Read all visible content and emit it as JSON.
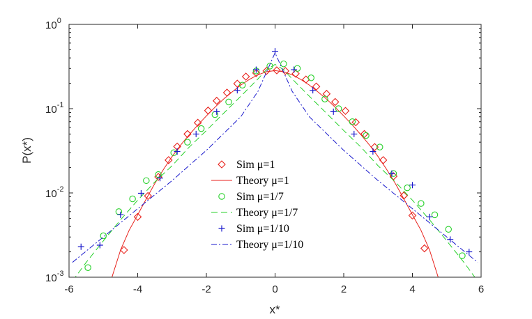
{
  "chart_data": {
    "type": "line",
    "xlabel": "x*",
    "ylabel": "P(x*)",
    "xlim": [
      -6,
      6
    ],
    "ylim": [
      0.001,
      1
    ],
    "yscale": "log",
    "grid": false,
    "legend_position": "center-left",
    "x_ticks": [
      -6,
      -4,
      -2,
      0,
      2,
      4,
      6
    ],
    "x_tick_labels": [
      "-6",
      "-4",
      "-2",
      "0",
      "2",
      "4",
      "6"
    ],
    "y_ticks": [
      {
        "value": 0.001,
        "base": "10",
        "exp": "-3"
      },
      {
        "value": 0.01,
        "base": "10",
        "exp": "-2"
      },
      {
        "value": 0.1,
        "base": "10",
        "exp": "-1"
      },
      {
        "value": 1,
        "base": "10",
        "exp": "0"
      }
    ],
    "series": [
      {
        "name": "Sim μ=1",
        "kind": "markers",
        "marker": "diamond",
        "color": "#e8221c",
        "x": [
          -4.4,
          -4.0,
          -3.7,
          -3.4,
          -3.1,
          -2.85,
          -2.55,
          -2.25,
          -1.95,
          -1.7,
          -1.4,
          -1.1,
          -0.85,
          -0.55,
          -0.25,
          0.05,
          0.3,
          0.6,
          0.9,
          1.2,
          1.5,
          1.75,
          2.05,
          2.35,
          2.6,
          2.9,
          3.15,
          3.45,
          3.75,
          4.0,
          4.35
        ],
        "y": [
          0.0021,
          0.0052,
          0.0092,
          0.0155,
          0.0245,
          0.0355,
          0.05,
          0.068,
          0.095,
          0.124,
          0.155,
          0.198,
          0.24,
          0.265,
          0.28,
          0.285,
          0.28,
          0.26,
          0.222,
          0.183,
          0.15,
          0.12,
          0.094,
          0.069,
          0.05,
          0.035,
          0.0245,
          0.0158,
          0.0093,
          0.0054,
          0.0022
        ]
      },
      {
        "name": "Theory μ=1",
        "kind": "line",
        "dash": "solid",
        "color": "#e8221c",
        "x": [
          -4.75,
          -4.5,
          -4.25,
          -4.0,
          -3.75,
          -3.5,
          -3.25,
          -3.0,
          -2.75,
          -2.5,
          -2.25,
          -2.0,
          -1.75,
          -1.5,
          -1.25,
          -1.0,
          -0.75,
          -0.5,
          -0.25,
          0.0,
          0.25,
          0.5,
          0.75,
          1.0,
          1.25,
          1.5,
          1.75,
          2.0,
          2.25,
          2.5,
          2.75,
          3.0,
          3.25,
          3.5,
          3.75,
          4.0,
          4.25,
          4.5,
          4.75
        ],
        "y": [
          0.001,
          0.0021,
          0.0036,
          0.0055,
          0.0085,
          0.013,
          0.019,
          0.027,
          0.037,
          0.049,
          0.064,
          0.082,
          0.104,
          0.13,
          0.158,
          0.19,
          0.222,
          0.252,
          0.274,
          0.283,
          0.274,
          0.252,
          0.222,
          0.19,
          0.158,
          0.13,
          0.104,
          0.082,
          0.064,
          0.049,
          0.037,
          0.027,
          0.019,
          0.013,
          0.0085,
          0.0055,
          0.0036,
          0.0021,
          0.001
        ]
      },
      {
        "name": "Sim μ=1/7",
        "kind": "markers",
        "marker": "circle",
        "color": "#27d12a",
        "x": [
          -5.45,
          -5.0,
          -4.55,
          -4.15,
          -3.75,
          -3.4,
          -2.95,
          -2.55,
          -2.15,
          -1.75,
          -1.35,
          -0.95,
          -0.55,
          -0.15,
          0.25,
          0.65,
          1.05,
          1.45,
          1.85,
          2.25,
          2.65,
          3.05,
          3.45,
          3.85,
          4.25,
          4.65,
          5.05,
          5.45
        ],
        "y": [
          0.0013,
          0.0031,
          0.006,
          0.0085,
          0.014,
          0.0165,
          0.03,
          0.04,
          0.058,
          0.085,
          0.12,
          0.19,
          0.28,
          0.32,
          0.34,
          0.3,
          0.232,
          0.13,
          0.1,
          0.07,
          0.048,
          0.035,
          0.017,
          0.0115,
          0.0075,
          0.0055,
          0.0037,
          0.0018
        ]
      },
      {
        "name": "Theory μ=1/7",
        "kind": "line",
        "dash": "dashed",
        "color": "#27d12a",
        "x": [
          -5.9,
          -5.5,
          -5.0,
          -4.5,
          -4.0,
          -3.5,
          -3.0,
          -2.5,
          -2.0,
          -1.5,
          -1.0,
          -0.5,
          -0.25,
          0.0,
          0.25,
          0.5,
          1.0,
          1.5,
          2.0,
          2.5,
          3.0,
          3.5,
          4.0,
          4.5,
          5.0,
          5.5,
          5.9
        ],
        "y": [
          0.0009,
          0.0015,
          0.0027,
          0.0048,
          0.0082,
          0.0135,
          0.021,
          0.035,
          0.055,
          0.088,
          0.14,
          0.225,
          0.29,
          0.335,
          0.29,
          0.225,
          0.14,
          0.088,
          0.055,
          0.035,
          0.021,
          0.0135,
          0.0082,
          0.0048,
          0.0027,
          0.0015,
          0.0009
        ]
      },
      {
        "name": "Sim μ=1/10",
        "kind": "markers",
        "marker": "plus",
        "color": "#1a1acc",
        "x": [
          -5.65,
          -5.1,
          -4.5,
          -3.9,
          -3.35,
          -2.85,
          -2.3,
          -1.7,
          -1.1,
          -0.55,
          0.0,
          0.55,
          1.1,
          1.7,
          2.3,
          2.85,
          3.4,
          4.0,
          4.5,
          5.1,
          5.65
        ],
        "y": [
          0.0023,
          0.0024,
          0.0055,
          0.0099,
          0.015,
          0.031,
          0.05,
          0.092,
          0.165,
          0.29,
          0.48,
          0.29,
          0.165,
          0.092,
          0.05,
          0.031,
          0.017,
          0.0124,
          0.0052,
          0.0028,
          0.002
        ]
      },
      {
        "name": "Theory μ=1/10",
        "kind": "line",
        "dash": "dashdot",
        "color": "#1a1acc",
        "x": [
          -5.9,
          -5.0,
          -4.0,
          -3.0,
          -2.0,
          -1.0,
          -0.5,
          0.0,
          0.5,
          1.0,
          2.0,
          3.0,
          4.0,
          5.0,
          5.9
        ],
        "y": [
          0.0015,
          0.003,
          0.0065,
          0.014,
          0.032,
          0.08,
          0.16,
          0.46,
          0.16,
          0.08,
          0.032,
          0.014,
          0.0065,
          0.003,
          0.0015
        ]
      }
    ]
  }
}
